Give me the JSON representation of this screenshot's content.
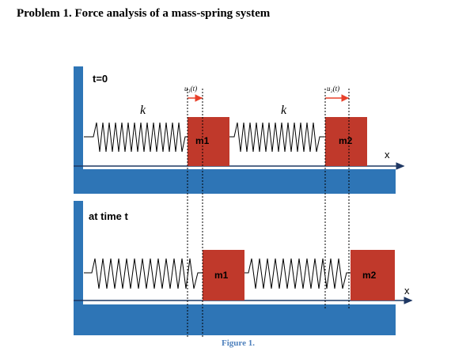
{
  "title": "Problem 1.  Force analysis of a mass-spring system",
  "caption": "Figure 1.",
  "panels": {
    "top": {
      "time_label": "t=0",
      "spring1_label": "k",
      "spring2_label": "k",
      "mass1_label": "m1",
      "mass2_label": "m2",
      "axis_label": "x",
      "disp1_label": "u₁(t)",
      "disp2_label": "u₂(t)"
    },
    "bottom": {
      "time_label": "at time t",
      "mass1_label": "m1",
      "mass2_label": "m2",
      "axis_label": "x"
    }
  },
  "colors": {
    "wall": "#2e75b6",
    "floor": "#2e75b6",
    "mass": "#c0392b",
    "arrow": "#e8402a",
    "axis": "#1f3864",
    "spring": "#000000"
  }
}
